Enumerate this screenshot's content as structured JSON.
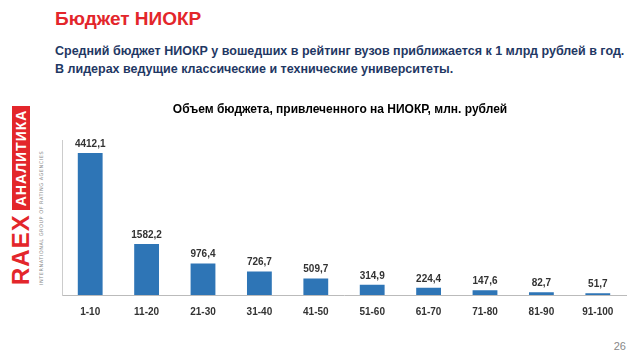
{
  "slide": {
    "title": "Бюджет НИОКР",
    "text": "Средний бюджет НИОКР у вошедших в рейтинг вузов приближается к 1 млрд рублей в год. В лидерах ведущие классические и технические университеты.",
    "logo": {
      "name": "RAEX",
      "subtitle": "АНАЛИТИКА",
      "tagline": "INTERNATIONAL GROUP OF RATING AGENCIES"
    },
    "page": 26
  },
  "chart_data": {
    "type": "bar",
    "title": "Объем бюджета, привлеченного на НИОКР, млн. рублей",
    "categories": [
      "1-10",
      "11-20",
      "21-30",
      "31-40",
      "41-50",
      "51-60",
      "61-70",
      "71-80",
      "81-90",
      "91-100"
    ],
    "values": [
      4412.1,
      1582.2,
      976.4,
      726.7,
      509.7,
      314.9,
      224.4,
      147.6,
      82.7,
      51.7
    ],
    "value_labels": [
      "4412,1",
      "1582,2",
      "976,4",
      "726,7",
      "509,7",
      "314,9",
      "224,4",
      "147,6",
      "82,7",
      "51,7"
    ],
    "color": "#2e75b6",
    "ylim": [
      0,
      4800
    ],
    "grid": false,
    "data_labels": true,
    "tick_labels": "x"
  }
}
